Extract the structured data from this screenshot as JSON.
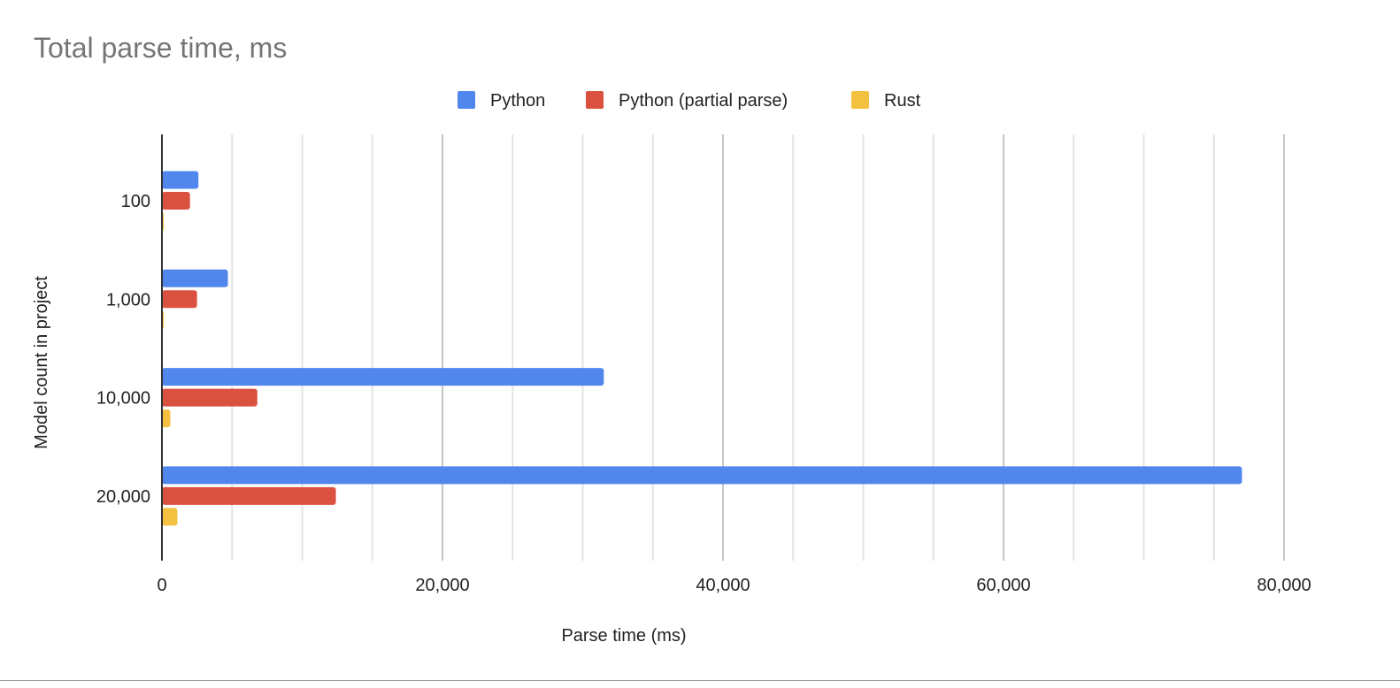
{
  "chart_data": {
    "type": "bar",
    "orientation": "horizontal",
    "title": "Total parse time, ms",
    "xlabel": "Parse time (ms)",
    "ylabel": "Model count in project",
    "categories": [
      "100",
      "1,000",
      "10,000",
      "20,000"
    ],
    "series": [
      {
        "name": "Python",
        "color": "#5186ec",
        "values": [
          2600,
          4700,
          31500,
          77000
        ]
      },
      {
        "name": "Python (partial parse)",
        "color": "#db5140",
        "values": [
          2000,
          2500,
          6800,
          12400
        ]
      },
      {
        "name": "Rust",
        "color": "#f4c03f",
        "values": [
          100,
          100,
          600,
          1100
        ]
      }
    ],
    "xlim": [
      0,
      80000
    ],
    "xticks": [
      0,
      20000,
      40000,
      60000,
      80000
    ],
    "xtick_labels": [
      "0",
      "20,000",
      "40,000",
      "60,000",
      "80,000"
    ],
    "minor_grid_step": 5000,
    "grid": true,
    "legend_position": "top"
  }
}
